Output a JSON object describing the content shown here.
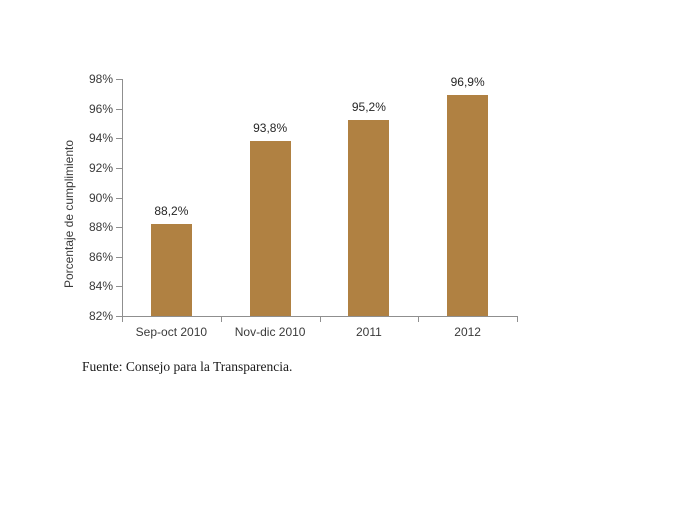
{
  "chart_data": {
    "type": "bar",
    "categories": [
      "Sep-oct 2010",
      "Nov-dic 2010",
      "2011",
      "2012"
    ],
    "values": [
      88.2,
      93.8,
      95.2,
      96.9
    ],
    "value_labels": [
      "88,2%",
      "93,8%",
      "95,2%",
      "96,9%"
    ],
    "xlabel": "",
    "ylabel": "Porcentaje de cumplimiento",
    "ylim": [
      82,
      98
    ],
    "yticks": [
      {
        "value": 82,
        "label": "82%"
      },
      {
        "value": 84,
        "label": "84%"
      },
      {
        "value": 86,
        "label": "86%"
      },
      {
        "value": 88,
        "label": "88%"
      },
      {
        "value": 90,
        "label": "90%"
      },
      {
        "value": 92,
        "label": "92%"
      },
      {
        "value": 94,
        "label": "94%"
      },
      {
        "value": 96,
        "label": "96%"
      },
      {
        "value": 98,
        "label": "98%"
      }
    ],
    "grid": false,
    "legend_position": "none"
  },
  "source_note": "Fuente: Consejo para la Transparencia.",
  "colors": {
    "bar": "#B08142",
    "axis": "#8F8F8F",
    "text": "#3A3A3A",
    "source_text": "#1A1A1A"
  }
}
